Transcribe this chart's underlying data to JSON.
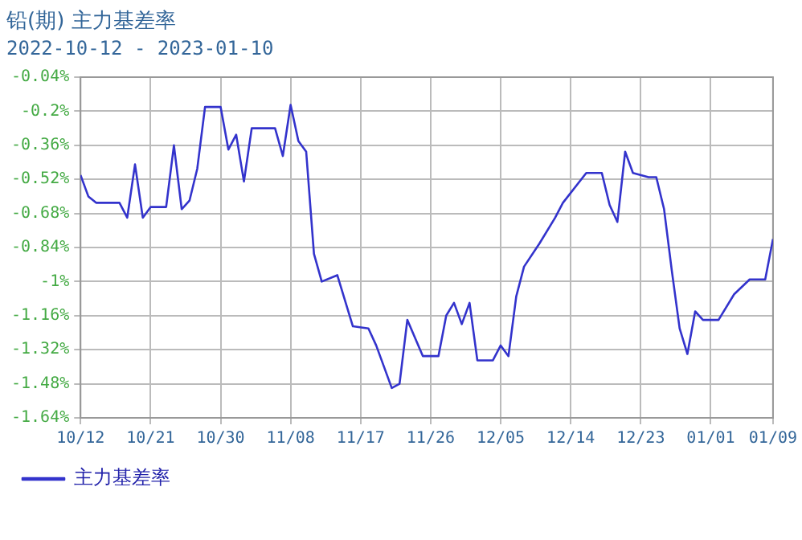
{
  "chart_data": {
    "type": "line",
    "title": "铅(期) 主力基差率",
    "subtitle": "2022-10-12 - 2023-01-10",
    "x": [
      "2022-10-12",
      "2022-10-13",
      "2022-10-14",
      "2022-10-17",
      "2022-10-18",
      "2022-10-19",
      "2022-10-20",
      "2022-10-21",
      "2022-10-23",
      "2022-10-24",
      "2022-10-25",
      "2022-10-26",
      "2022-10-27",
      "2022-10-28",
      "2022-10-30",
      "2022-10-31",
      "2022-11-01",
      "2022-11-02",
      "2022-11-03",
      "2022-11-06",
      "2022-11-07",
      "2022-11-08",
      "2022-11-09",
      "2022-11-10",
      "2022-11-11",
      "2022-11-12",
      "2022-11-14",
      "2022-11-16",
      "2022-11-18",
      "2022-11-19",
      "2022-11-21",
      "2022-11-22",
      "2022-11-23",
      "2022-11-25",
      "2022-11-27",
      "2022-11-28",
      "2022-11-29",
      "2022-11-30",
      "2022-12-01",
      "2022-12-02",
      "2022-12-04",
      "2022-12-05",
      "2022-12-06",
      "2022-12-07",
      "2022-12-08",
      "2022-12-10",
      "2022-12-12",
      "2022-12-13",
      "2022-12-16",
      "2022-12-18",
      "2022-12-19",
      "2022-12-20",
      "2022-12-21",
      "2022-12-22",
      "2022-12-24",
      "2022-12-25",
      "2022-12-26",
      "2022-12-27",
      "2022-12-28",
      "2022-12-29",
      "2022-12-30",
      "2022-12-31",
      "2023-01-02",
      "2023-01-04",
      "2023-01-06",
      "2023-01-08",
      "2023-01-09"
    ],
    "series": [
      {
        "name": "主力基差率",
        "color": "#3333cc",
        "values": [
          -0.5,
          -0.6,
          -0.63,
          -0.63,
          -0.7,
          -0.45,
          -0.7,
          -0.65,
          -0.65,
          -0.36,
          -0.66,
          -0.62,
          -0.47,
          -0.18,
          -0.18,
          -0.38,
          -0.31,
          -0.53,
          -0.28,
          -0.28,
          -0.41,
          -0.17,
          -0.34,
          -0.39,
          -0.87,
          -1.0,
          -0.97,
          -1.21,
          -1.22,
          -1.3,
          -1.5,
          -1.48,
          -1.18,
          -1.35,
          -1.35,
          -1.16,
          -1.1,
          -1.2,
          -1.1,
          -1.37,
          -1.37,
          -1.3,
          -1.35,
          -1.07,
          -0.93,
          -0.82,
          -0.7,
          -0.63,
          -0.49,
          -0.49,
          -0.64,
          -0.72,
          -0.39,
          -0.49,
          -0.51,
          -0.51,
          -0.66,
          -0.95,
          -1.22,
          -1.34,
          -1.14,
          -1.18,
          -1.18,
          -1.06,
          -0.99,
          -0.99,
          -0.8
        ]
      }
    ],
    "xlim": [
      "2022-10-12",
      "2023-01-09"
    ],
    "xticks": [
      {
        "value": "2022-10-12",
        "label": "10/12"
      },
      {
        "value": "2022-10-21",
        "label": "10/21"
      },
      {
        "value": "2022-10-30",
        "label": "10/30"
      },
      {
        "value": "2022-11-08",
        "label": "11/08"
      },
      {
        "value": "2022-11-17",
        "label": "11/17"
      },
      {
        "value": "2022-11-26",
        "label": "11/26"
      },
      {
        "value": "2022-12-05",
        "label": "12/05"
      },
      {
        "value": "2022-12-14",
        "label": "12/14"
      },
      {
        "value": "2022-12-23",
        "label": "12/23"
      },
      {
        "value": "2023-01-01",
        "label": "01/01"
      },
      {
        "value": "2023-01-09",
        "label": "01/09"
      }
    ],
    "ylim": [
      -1.64,
      -0.04
    ],
    "yticks": [
      {
        "value": -1.64,
        "label": "-1.64%"
      },
      {
        "value": -1.48,
        "label": "-1.48%"
      },
      {
        "value": -1.32,
        "label": "-1.32%"
      },
      {
        "value": -1.16,
        "label": "-1.16%"
      },
      {
        "value": -1.0,
        "label": "-1%"
      },
      {
        "value": -0.84,
        "label": "-0.84%"
      },
      {
        "value": -0.68,
        "label": "-0.68%"
      },
      {
        "value": -0.52,
        "label": "-0.52%"
      },
      {
        "value": -0.36,
        "label": "-0.36%"
      },
      {
        "value": -0.2,
        "label": "-0.2%"
      },
      {
        "value": -0.04,
        "label": "-0.04%"
      }
    ],
    "grid": true,
    "legend": "bottom left",
    "marker": "none",
    "line_style": "solid"
  }
}
